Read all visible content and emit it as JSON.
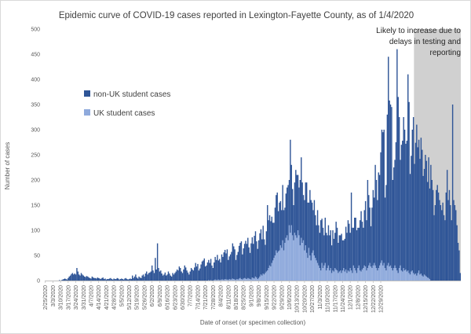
{
  "chart_data": {
    "type": "bar",
    "stacked": true,
    "title": "Epidemic curve of COVID-19 cases reported in Lexington-Fayette County, as of 1/4/2020",
    "xlabel": "Date of onset (or specimen collection)",
    "ylabel": "Number of cases",
    "ylim": [
      0,
      500
    ],
    "yticks": [
      0,
      50,
      100,
      150,
      200,
      250,
      300,
      350,
      400,
      450,
      500
    ],
    "x_start": "2/25/2020",
    "x_end": "1/3/2021",
    "x_tick_labels": [
      "2/25/2020",
      "3/3/2020",
      "3/10/2020",
      "3/17/2020",
      "3/24/2020",
      "3/31/2020",
      "4/7/2020",
      "4/14/2020",
      "4/21/2020",
      "4/28/2020",
      "5/5/2020",
      "5/12/2020",
      "5/19/2020",
      "5/26/2020",
      "6/2/2020",
      "6/9/2020",
      "6/16/2020",
      "6/23/2020",
      "6/30/2020",
      "7/7/2020",
      "7/14/2020",
      "7/21/2020",
      "7/28/2020",
      "8/4/2020",
      "8/11/2020",
      "8/18/2020",
      "8/25/2020",
      "9/1/2020",
      "9/8/2020",
      "9/15/2020",
      "9/22/2020",
      "9/29/2020",
      "10/6/2020",
      "10/13/2020",
      "10/20/2020",
      "10/27/2020",
      "11/3/2020",
      "11/10/2020",
      "11/17/2020",
      "11/24/2020",
      "12/1/2020",
      "12/8/2020",
      "12/15/2020",
      "12/22/2020",
      "12/29/2020"
    ],
    "grid": false,
    "legend_position": "upper-left inside plot",
    "series": [
      {
        "name": "non-UK student cases",
        "color": "#2f5597",
        "values": [
          0,
          0,
          0,
          0,
          0,
          0,
          0,
          0,
          0,
          0,
          0,
          0,
          0,
          1,
          0,
          1,
          2,
          3,
          4,
          3,
          2,
          5,
          8,
          10,
          13,
          15,
          12,
          14,
          12,
          25,
          18,
          12,
          10,
          15,
          12,
          10,
          8,
          7,
          9,
          8,
          6,
          5,
          4,
          8,
          6,
          5,
          5,
          4,
          6,
          5,
          4,
          3,
          5,
          6,
          3,
          4,
          2,
          3,
          3,
          4,
          5,
          3,
          2,
          4,
          3,
          3,
          5,
          4,
          2,
          3,
          4,
          3,
          2,
          4,
          5,
          3,
          2,
          3,
          4,
          3,
          10,
          5,
          8,
          12,
          6,
          4,
          8,
          6,
          5,
          10,
          12,
          8,
          14,
          18,
          12,
          15,
          16,
          18,
          30,
          20,
          15,
          45,
          22,
          74,
          25,
          18,
          20,
          14,
          10,
          12,
          16,
          10,
          12,
          18,
          14,
          10,
          8,
          15,
          12,
          15,
          18,
          22,
          20,
          28,
          25,
          18,
          15,
          22,
          30,
          26,
          20,
          16,
          12,
          18,
          25,
          22,
          20,
          26,
          35,
          28,
          33,
          20,
          24,
          32,
          38,
          40,
          44,
          28,
          30,
          36,
          40,
          35,
          42,
          30,
          25,
          35,
          45,
          40,
          50,
          38,
          42,
          35,
          50,
          45,
          55,
          58,
          52,
          60,
          40,
          45,
          50,
          55,
          70,
          65,
          60,
          40,
          48,
          55,
          65,
          70,
          75,
          50,
          60,
          68,
          75,
          70,
          80,
          62,
          52,
          72,
          80,
          68,
          85,
          90,
          72,
          60,
          75,
          86,
          90,
          72,
          95,
          70,
          56,
          80,
          130,
          95,
          100,
          90,
          92,
          75,
          70,
          95,
          110,
          120,
          80,
          95,
          88,
          75,
          110,
          80,
          70,
          88,
          95,
          110,
          90,
          185,
          120,
          92,
          70,
          100,
          130,
          125,
          110,
          95,
          130,
          160,
          120,
          90,
          100,
          125,
          140,
          110,
          90,
          130,
          120,
          100,
          80,
          110,
          85,
          70,
          105,
          80,
          70,
          100,
          88,
          80,
          60,
          90,
          75,
          65,
          80,
          70,
          75,
          55,
          80,
          65,
          70,
          95,
          85,
          60,
          72,
          70,
          78,
          60,
          55,
          65,
          85,
          80,
          100,
          95,
          70,
          155,
          90,
          75,
          100,
          105,
          85,
          80,
          75,
          100,
          120,
          95,
          80,
          110,
          130,
          100,
          175,
          140,
          110,
          80,
          120,
          150,
          130,
          200,
          175,
          140,
          190,
          180,
          220,
          260,
          265,
          265,
          140,
          170,
          300,
          410,
          330,
          320,
          320,
          180,
          200,
          210,
          250,
          440,
          350,
          300,
          210,
          250,
          260,
          300,
          280,
          250,
          260,
          390,
          340,
          200,
          230,
          280,
          310,
          220,
          260,
          300,
          250,
          260,
          230,
          270,
          250,
          200,
          210,
          240,
          230,
          190,
          240,
          180,
          230,
          200,
          180,
          130,
          150,
          180,
          190,
          175,
          160,
          150,
          140,
          155,
          130,
          120,
          175,
          220,
          160,
          180,
          150,
          120,
          350,
          160,
          150,
          140,
          110,
          75,
          60,
          15
        ]
      },
      {
        "name": "UK student cases",
        "color": "#8faadc",
        "values": [
          0,
          0,
          0,
          0,
          0,
          0,
          0,
          0,
          0,
          0,
          0,
          0,
          0,
          0,
          0,
          0,
          0,
          0,
          0,
          0,
          0,
          0,
          0,
          0,
          0,
          0,
          0,
          0,
          0,
          0,
          0,
          0,
          0,
          0,
          0,
          0,
          0,
          0,
          0,
          0,
          0,
          0,
          0,
          0,
          0,
          0,
          0,
          0,
          0,
          0,
          0,
          0,
          0,
          0,
          0,
          0,
          0,
          0,
          0,
          0,
          0,
          0,
          0,
          0,
          0,
          0,
          0,
          0,
          0,
          0,
          0,
          0,
          0,
          0,
          0,
          0,
          0,
          0,
          0,
          0,
          0,
          0,
          0,
          0,
          0,
          0,
          0,
          0,
          0,
          0,
          0,
          0,
          0,
          0,
          0,
          0,
          0,
          0,
          0,
          0,
          0,
          0,
          0,
          0,
          0,
          0,
          0,
          0,
          0,
          0,
          0,
          0,
          0,
          0,
          0,
          0,
          0,
          0,
          0,
          0,
          0,
          0,
          0,
          0,
          0,
          0,
          0,
          0,
          0,
          0,
          0,
          0,
          0,
          0,
          0,
          0,
          0,
          0,
          0,
          0,
          0,
          0,
          0,
          0,
          0,
          0,
          0,
          0,
          0,
          0,
          1,
          0,
          1,
          0,
          0,
          1,
          2,
          1,
          1,
          2,
          1,
          1,
          2,
          2,
          1,
          3,
          2,
          2,
          1,
          3,
          2,
          2,
          4,
          3,
          2,
          1,
          3,
          2,
          4,
          5,
          3,
          2,
          4,
          5,
          4,
          3,
          5,
          4,
          3,
          2,
          6,
          5,
          4,
          8,
          6,
          3,
          5,
          8,
          12,
          10,
          14,
          12,
          15,
          18,
          20,
          25,
          30,
          28,
          35,
          40,
          45,
          50,
          60,
          55,
          58,
          60,
          70,
          65,
          80,
          60,
          75,
          85,
          90,
          80,
          110,
          95,
          110,
          90,
          80,
          95,
          90,
          85,
          100,
          90,
          70,
          85,
          75,
          80,
          60,
          70,
          55,
          45,
          65,
          50,
          40,
          55,
          60,
          50,
          45,
          40,
          35,
          30,
          25,
          20,
          35,
          25,
          30,
          35,
          20,
          25,
          30,
          20,
          25,
          15,
          20,
          18,
          25,
          22,
          20,
          15,
          18,
          20,
          15,
          20,
          25,
          18,
          22,
          15,
          20,
          18,
          25,
          20,
          15,
          30,
          25,
          20,
          15,
          25,
          30,
          20,
          18,
          22,
          25,
          30,
          28,
          20,
          25,
          30,
          35,
          28,
          25,
          30,
          35,
          30,
          25,
          20,
          25,
          30,
          35,
          40,
          30,
          35,
          25,
          20,
          30,
          35,
          28,
          30,
          25,
          20,
          25,
          30,
          25,
          20,
          15,
          25,
          30,
          20,
          18,
          25,
          20,
          22,
          18,
          20,
          15,
          12,
          18,
          20,
          15,
          12,
          14,
          10,
          15,
          20,
          12,
          14,
          10,
          8,
          12,
          10,
          8,
          6,
          5,
          3
        ]
      }
    ],
    "annotation": {
      "text_lines": [
        "Likely to increase due to",
        "delays in testing and",
        "reporting"
      ],
      "shade_from_index": 339,
      "shade_color": "#d0d0d0"
    }
  }
}
